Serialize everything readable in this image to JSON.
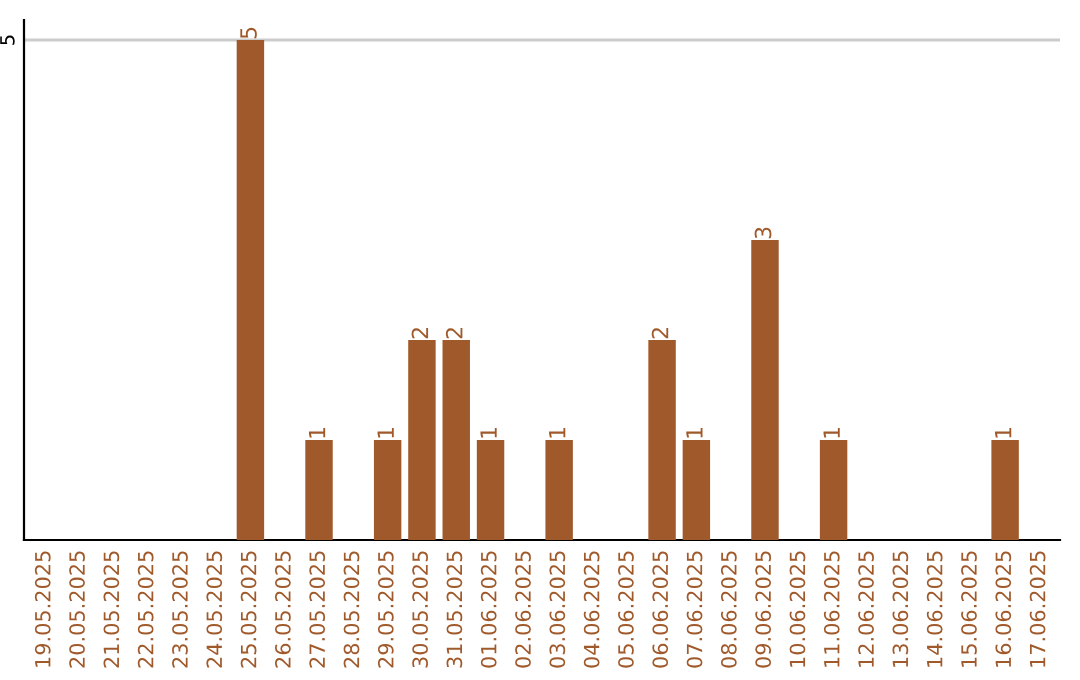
{
  "chart_data": {
    "type": "bar",
    "categories": [
      "19.05.2025",
      "20.05.2025",
      "21.05.2025",
      "22.05.2025",
      "23.05.2025",
      "24.05.2025",
      "25.05.2025",
      "26.05.2025",
      "27.05.2025",
      "28.05.2025",
      "29.05.2025",
      "30.05.2025",
      "31.05.2025",
      "01.06.2025",
      "02.06.2025",
      "03.06.2025",
      "04.06.2025",
      "05.06.2025",
      "06.06.2025",
      "07.06.2025",
      "08.06.2025",
      "09.06.2025",
      "10.06.2025",
      "11.06.2025",
      "12.06.2025",
      "13.06.2025",
      "14.06.2025",
      "15.06.2025",
      "16.06.2025",
      "17.06.2025"
    ],
    "values": [
      0,
      0,
      0,
      0,
      0,
      0,
      5,
      0,
      1,
      0,
      1,
      2,
      2,
      1,
      0,
      1,
      0,
      0,
      2,
      1,
      0,
      3,
      0,
      1,
      0,
      0,
      0,
      0,
      1,
      0
    ],
    "color": "#a0592a",
    "value_labels": [
      null,
      null,
      null,
      null,
      null,
      null,
      "5",
      null,
      "1",
      null,
      "1",
      "2",
      "2",
      "1",
      null,
      "1",
      null,
      null,
      "2",
      "1",
      null,
      "3",
      null,
      "1",
      null,
      null,
      null,
      null,
      "1",
      null
    ],
    "ylim": [
      0,
      5.2
    ],
    "yticks": [
      5
    ],
    "grid": "y"
  }
}
